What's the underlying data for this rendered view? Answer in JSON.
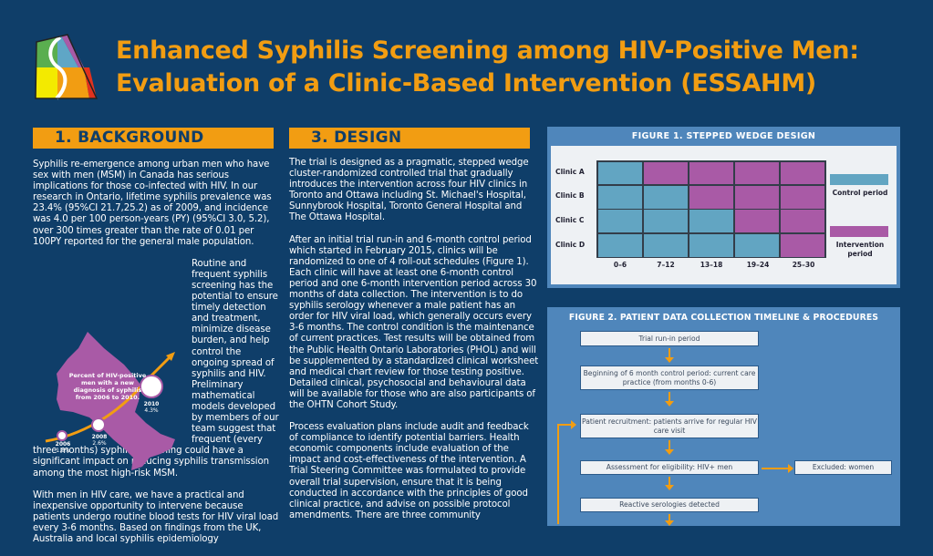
{
  "header": {
    "title_line1": "Enhanced Syphilis Screening among HIV-Positive Men:",
    "title_line2": "Evaluation of a Clinic-Based Intervention (ESSAHM)",
    "logo": "essahm-s-logo",
    "colors": {
      "title": "#f29d12",
      "background": "#0f3e69"
    }
  },
  "background": {
    "heading": "1. BACKGROUND",
    "paragraph1": "Syphilis re-emergence among urban men who have sex with men (MSM) in Canada has serious implications for those co-infected with HIV. In our research in Ontario, lifetime syphilis prevalence was 23.4% (95%CI 21.7,25.2) as of 2009, and incidence was 4.0 per 100 person-years (PY) (95%CI 3.0, 5.2), over 300 times greater than the rate of 0.01 per 100PY reported for the general male population.",
    "paragraph2": "Routine and frequent syphilis screening has the potential to ensure timely detection and treatment, minimize disease burden, and help control the ongoing spread of syphilis and HIV. Preliminary mathematical models developed by members of our team suggest that frequent (every three months) syphilis screening could have a significant impact on reducing syphilis transmission among the most high-risk MSM.",
    "paragraph3": "With men in HIV care, we have a practical and inexpensive opportunity to intervene because patients undergo routine blood tests for HIV viral load every 3-6 months. Based on findings from the UK, Australia and local syphilis epidemiology",
    "map_figure": {
      "caption": "Percent of HIV-positive men with a new diagnosis of syphilis from 2006 to 2010.",
      "points": [
        {
          "year": "2006",
          "value": "1.8%"
        },
        {
          "year": "2008",
          "value": "2.6%"
        },
        {
          "year": "2010",
          "value": "4.3%"
        }
      ],
      "colors": {
        "map": "#a95aa6",
        "trend": "#f29d12"
      }
    }
  },
  "design": {
    "heading": "3. DESIGN",
    "paragraph1": "The trial is designed as a pragmatic, stepped wedge cluster-randomized controlled trial that gradually introduces the intervention across four HIV clinics in Toronto and Ottawa including St. Michael's Hospital, Sunnybrook Hospital, Toronto General Hospital and The Ottawa Hospital.",
    "paragraph2": "After an initial trial run-in and 6-month control period which started in February 2015, clinics will be randomized to one of 4 roll-out schedules (Figure 1). Each clinic will have at least one 6-month control period and one 6-month intervention period across 30 months of data collection. The intervention is to do syphilis serology whenever a male patient has an order for HIV viral load, which generally occurs every 3-6 months. The control condition is the maintenance of current practices. Test results will be obtained from the Public Health Ontario Laboratories (PHOL) and will be supplemented by a standardized clinical worksheet and medical chart review for those testing positive. Detailed clinical, psychosocial and behavioural data will be available for those who are also participants of the OHTN Cohort Study.",
    "paragraph3": "Process evaluation plans include audit and feedback of compliance to identify potential barriers. Health economic components include evaluation of the impact and cost-effectiveness of the intervention. A Trial Steering Committee was formulated to provide overall trial supervision, ensure that it is being conducted in accordance with the principles of good clinical practice, and advise on possible protocol amendments. There are three community"
  },
  "figure1": {
    "title": "FIGURE 1. STEPPED WEDGE DESIGN",
    "clinics": [
      "Clinic A",
      "Clinic B",
      "Clinic C",
      "Clinic D"
    ],
    "periods": [
      "0–6",
      "7–12",
      "13–18",
      "19–24",
      "25–30"
    ],
    "schedule": [
      [
        "control",
        "intervention",
        "intervention",
        "intervention",
        "intervention"
      ],
      [
        "control",
        "control",
        "intervention",
        "intervention",
        "intervention"
      ],
      [
        "control",
        "control",
        "control",
        "intervention",
        "intervention"
      ],
      [
        "control",
        "control",
        "control",
        "control",
        "intervention"
      ]
    ],
    "legend": {
      "control": "Control period",
      "intervention": "Intervention period"
    },
    "colors": {
      "control": "#62a5c2",
      "intervention": "#a95aa6"
    }
  },
  "figure2": {
    "title": "FIGURE 2. PATIENT DATA COLLECTION TIMELINE & PROCEDURES",
    "steps": [
      "Trial run-in period",
      "Beginning of 6 month control period: current care practice (from months 0-6)",
      "Patient recruitment: patients arrive for regular HIV care visit",
      "Assessment for eligibility: HIV+ men",
      "Reactive serologies detected"
    ],
    "excluded": "Excluded: women",
    "colors": {
      "arrow": "#f29d12",
      "panel": "#4f86bb"
    }
  }
}
